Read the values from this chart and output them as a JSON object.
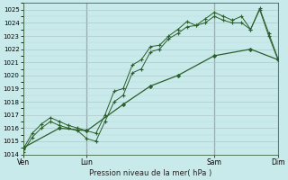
{
  "xlabel": "Pression niveau de la mer( hPa )",
  "ylim": [
    1014,
    1025.5
  ],
  "xlim": [
    0,
    336
  ],
  "yticks": [
    1014,
    1015,
    1016,
    1017,
    1018,
    1019,
    1020,
    1021,
    1022,
    1023,
    1024,
    1025
  ],
  "bg_color": "#c8eaea",
  "grid_color_major": "#b0c8c8",
  "grid_color_minor": "#c0d8d8",
  "line_color": "#2a5e2a",
  "day_labels": [
    "Ven",
    "Lun",
    "Sam",
    "Dim"
  ],
  "day_positions": [
    0,
    84,
    252,
    336
  ],
  "vline_color": "#556677",
  "series1": {
    "x": [
      0,
      12,
      24,
      36,
      48,
      60,
      72,
      84,
      96,
      108,
      120,
      132,
      144,
      156,
      168,
      180,
      192,
      204,
      216,
      228,
      240,
      252,
      264,
      276,
      288,
      300,
      312,
      324,
      336
    ],
    "y": [
      1014.2,
      1015.3,
      1016.0,
      1016.5,
      1016.2,
      1016.0,
      1015.8,
      1015.2,
      1015.0,
      1016.5,
      1018.0,
      1018.5,
      1020.2,
      1020.5,
      1021.8,
      1022.0,
      1022.8,
      1023.2,
      1023.7,
      1023.8,
      1024.0,
      1024.5,
      1024.2,
      1024.0,
      1024.0,
      1023.5,
      1025.0,
      1023.0,
      1021.2
    ]
  },
  "series2": {
    "x": [
      0,
      12,
      24,
      36,
      48,
      60,
      72,
      84,
      96,
      108,
      120,
      132,
      144,
      156,
      168,
      180,
      192,
      204,
      216,
      228,
      240,
      252,
      264,
      276,
      288,
      300,
      312,
      324,
      336
    ],
    "y": [
      1014.4,
      1015.6,
      1016.3,
      1016.8,
      1016.5,
      1016.2,
      1016.0,
      1015.8,
      1015.6,
      1017.0,
      1018.8,
      1019.0,
      1020.8,
      1021.2,
      1022.2,
      1022.3,
      1023.0,
      1023.5,
      1024.1,
      1023.8,
      1024.3,
      1024.8,
      1024.5,
      1024.2,
      1024.5,
      1023.5,
      1025.1,
      1023.2,
      1021.3
    ]
  },
  "series3": {
    "x": [
      0,
      48,
      84,
      132,
      168,
      204,
      252,
      300,
      336
    ],
    "y": [
      1014.5,
      1016.0,
      1015.8,
      1017.8,
      1019.2,
      1020.0,
      1021.5,
      1022.0,
      1021.2
    ]
  }
}
